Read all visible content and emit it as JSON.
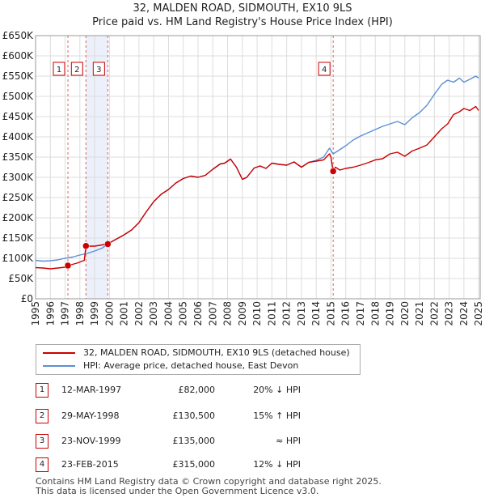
{
  "chart_data": {
    "type": "line",
    "title": "32, MALDEN ROAD, SIDMOUTH, EX10 9LS",
    "subtitle": "Price paid vs. HM Land Registry's House Price Index (HPI)",
    "xlim": [
      1995,
      2025.1
    ],
    "ylim": [
      0,
      650000
    ],
    "yticks": [
      0,
      50000,
      100000,
      150000,
      200000,
      250000,
      300000,
      350000,
      400000,
      450000,
      500000,
      550000,
      600000,
      650000
    ],
    "ytick_labels": [
      "£0",
      "£50K",
      "£100K",
      "£150K",
      "£200K",
      "£250K",
      "£300K",
      "£350K",
      "£400K",
      "£450K",
      "£500K",
      "£550K",
      "£600K",
      "£650K"
    ],
    "xtick_labels": [
      "1995",
      "1996",
      "1997",
      "1998",
      "1999",
      "2000",
      "2001",
      "2002",
      "2003",
      "2004",
      "2005",
      "2006",
      "2007",
      "2008",
      "2009",
      "2010",
      "2011",
      "2012",
      "2013",
      "2014",
      "2015",
      "2016",
      "2017",
      "2018",
      "2019",
      "2020",
      "2021",
      "2022",
      "2023",
      "2024",
      "2025"
    ],
    "series": [
      {
        "name": "32, MALDEN ROAD, SIDMOUTH, EX10 9LS (detached house)",
        "color": "#cc0000",
        "x": [
          1995.0,
          1995.5,
          1996.0,
          1996.5,
          1997.0,
          1997.19,
          1997.3,
          1997.8,
          1998.3,
          1998.41,
          1998.5,
          1999.0,
          1999.5,
          1999.89,
          2000.0,
          2000.5,
          2001.0,
          2001.5,
          2002.0,
          2002.5,
          2003.0,
          2003.5,
          2004.0,
          2004.5,
          2005.0,
          2005.5,
          2006.0,
          2006.5,
          2007.0,
          2007.5,
          2007.8,
          2008.2,
          2008.6,
          2009.0,
          2009.3,
          2009.8,
          2010.2,
          2010.6,
          2011.0,
          2011.5,
          2012.0,
          2012.5,
          2013.0,
          2013.5,
          2014.0,
          2014.5,
          2014.9,
          2015.0,
          2015.15,
          2015.3,
          2015.6,
          2016.0,
          2016.5,
          2017.0,
          2017.5,
          2018.0,
          2018.5,
          2019.0,
          2019.5,
          2020.0,
          2020.5,
          2021.0,
          2021.5,
          2022.0,
          2022.5,
          2022.9,
          2023.3,
          2023.7,
          2024.0,
          2024.4,
          2024.8,
          2025.0
        ],
        "y": [
          77000,
          76000,
          74000,
          76000,
          78000,
          82000,
          83000,
          88000,
          95000,
          130500,
          130000,
          130000,
          133000,
          135000,
          138000,
          148000,
          158000,
          170000,
          188000,
          215000,
          240000,
          258000,
          270000,
          286000,
          297000,
          303000,
          300000,
          305000,
          320000,
          333000,
          335000,
          345000,
          325000,
          295000,
          300000,
          323000,
          328000,
          322000,
          335000,
          332000,
          330000,
          338000,
          325000,
          337000,
          340000,
          343000,
          358000,
          350000,
          315000,
          325000,
          318000,
          322000,
          325000,
          330000,
          336000,
          343000,
          346000,
          358000,
          362000,
          352000,
          365000,
          372000,
          380000,
          400000,
          420000,
          432000,
          455000,
          462000,
          470000,
          465000,
          475000,
          465000
        ]
      },
      {
        "name": "HPI: Average price, detached house, East Devon",
        "color": "#5b8fd6",
        "x": [
          1995.0,
          1995.5,
          1996.0,
          1996.5,
          1997.0,
          1997.5,
          1998.0,
          1998.5,
          1999.0,
          1999.5,
          2000.0,
          2000.5,
          2001.0,
          2001.5,
          2002.0,
          2002.5,
          2003.0,
          2003.5,
          2004.0,
          2004.5,
          2005.0,
          2005.5,
          2006.0,
          2006.5,
          2007.0,
          2007.5,
          2007.8,
          2008.2,
          2008.6,
          2009.0,
          2009.3,
          2009.8,
          2010.2,
          2010.6,
          2011.0,
          2011.5,
          2012.0,
          2012.5,
          2013.0,
          2013.5,
          2014.0,
          2014.5,
          2014.9,
          2015.15,
          2015.5,
          2016.0,
          2016.5,
          2017.0,
          2017.5,
          2018.0,
          2018.5,
          2019.0,
          2019.5,
          2020.0,
          2020.5,
          2021.0,
          2021.5,
          2022.0,
          2022.5,
          2022.9,
          2023.3,
          2023.7,
          2024.0,
          2024.4,
          2024.8,
          2025.0
        ],
        "y": [
          95000,
          93000,
          94000,
          96000,
          100000,
          103000,
          108000,
          112000,
          118000,
          125000,
          138000,
          148000,
          158000,
          170000,
          188000,
          215000,
          240000,
          258000,
          270000,
          286000,
          297000,
          303000,
          300000,
          305000,
          320000,
          333000,
          335000,
          345000,
          325000,
          295000,
          300000,
          323000,
          328000,
          322000,
          335000,
          332000,
          330000,
          338000,
          325000,
          337000,
          342000,
          350000,
          372000,
          358000,
          366000,
          378000,
          392000,
          402000,
          410000,
          418000,
          426000,
          432000,
          438000,
          430000,
          447000,
          460000,
          478000,
          505000,
          530000,
          540000,
          535000,
          545000,
          535000,
          542000,
          550000,
          545000
        ]
      }
    ],
    "sales": [
      {
        "id": "1",
        "x": 1997.19,
        "price": 82000
      },
      {
        "id": "2",
        "x": 1998.41,
        "price": 130500
      },
      {
        "id": "3",
        "x": 1999.89,
        "price": 135000
      },
      {
        "id": "4",
        "x": 2015.15,
        "price": 315000
      }
    ]
  },
  "legend": {
    "property_label": "32, MALDEN ROAD, SIDMOUTH, EX10 9LS (detached house)",
    "hpi_label": "HPI: Average price, detached house, East Devon"
  },
  "transactions": [
    {
      "id": "1",
      "date": "12-MAR-1997",
      "price": "£82,000",
      "hpi": "20% ↓ HPI"
    },
    {
      "id": "2",
      "date": "29-MAY-1998",
      "price": "£130,500",
      "hpi": "15% ↑ HPI"
    },
    {
      "id": "3",
      "date": "23-NOV-1999",
      "price": "£135,000",
      "hpi": "≈ HPI"
    },
    {
      "id": "4",
      "date": "23-FEB-2015",
      "price": "£315,000",
      "hpi": "12% ↓ HPI"
    }
  ],
  "footer": {
    "line1": "Contains HM Land Registry data © Crown copyright and database right 2025.",
    "line2": "This data is licensed under the Open Government Licence v3.0."
  }
}
